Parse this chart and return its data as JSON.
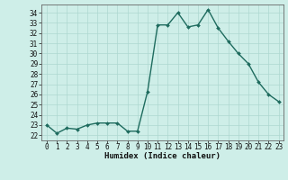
{
  "x": [
    0,
    1,
    2,
    3,
    4,
    5,
    6,
    7,
    8,
    9,
    10,
    11,
    12,
    13,
    14,
    15,
    16,
    17,
    18,
    19,
    20,
    21,
    22,
    23
  ],
  "y": [
    23.0,
    22.2,
    22.7,
    22.6,
    23.0,
    23.2,
    23.2,
    23.2,
    22.4,
    22.4,
    26.3,
    32.8,
    32.8,
    34.0,
    32.6,
    32.8,
    34.3,
    32.5,
    31.2,
    30.0,
    29.0,
    27.2,
    26.0,
    25.3
  ],
  "line_color": "#1e6b5e",
  "marker": "D",
  "marker_size": 2.0,
  "line_width": 1.0,
  "bg_color": "#ceeee8",
  "grid_color": "#aed8d0",
  "xlabel": "Humidex (Indice chaleur)",
  "xlim": [
    -0.5,
    23.5
  ],
  "ylim": [
    21.5,
    34.8
  ],
  "yticks": [
    22,
    23,
    24,
    25,
    26,
    27,
    28,
    29,
    30,
    31,
    32,
    33,
    34
  ],
  "xticks": [
    0,
    1,
    2,
    3,
    4,
    5,
    6,
    7,
    8,
    9,
    10,
    11,
    12,
    13,
    14,
    15,
    16,
    17,
    18,
    19,
    20,
    21,
    22,
    23
  ],
  "label_fontsize": 6.5,
  "tick_fontsize": 5.5
}
